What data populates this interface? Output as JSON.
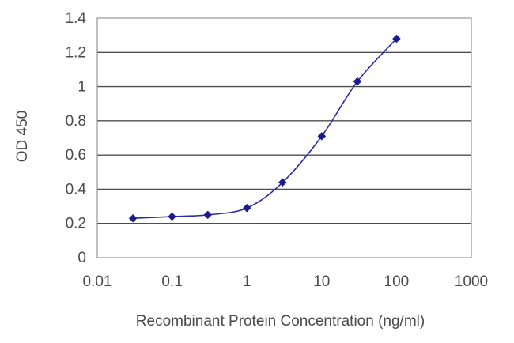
{
  "chart_data": {
    "type": "line",
    "title": "",
    "xlabel": "Recombinant Protein Concentration (ng/ml)",
    "ylabel": "OD 450",
    "x_scale": "log",
    "xlim": [
      0.01,
      1000
    ],
    "ylim": [
      0,
      1.4
    ],
    "x_ticks": [
      0.01,
      0.1,
      1,
      10,
      100,
      1000
    ],
    "x_tick_labels": [
      "0.01",
      "0.1",
      "1",
      "10",
      "100",
      "1000"
    ],
    "y_ticks": [
      0,
      0.2,
      0.4,
      0.6,
      0.8,
      1,
      1.2,
      1.4
    ],
    "y_tick_labels": [
      "0",
      "0.2",
      "0.4",
      "0.6",
      "0.8",
      "1",
      "1.2",
      "1.4"
    ],
    "grid": "horizontal",
    "legend": "none",
    "series": [
      {
        "x": [
          0.03,
          0.1,
          0.3,
          1,
          3,
          10,
          30,
          100
        ],
        "y": [
          0.23,
          0.24,
          0.25,
          0.29,
          0.44,
          0.71,
          1.03,
          1.28
        ],
        "color": "#2a2ab0",
        "marker": "diamond",
        "marker_color": "#1a1a8c"
      }
    ]
  }
}
